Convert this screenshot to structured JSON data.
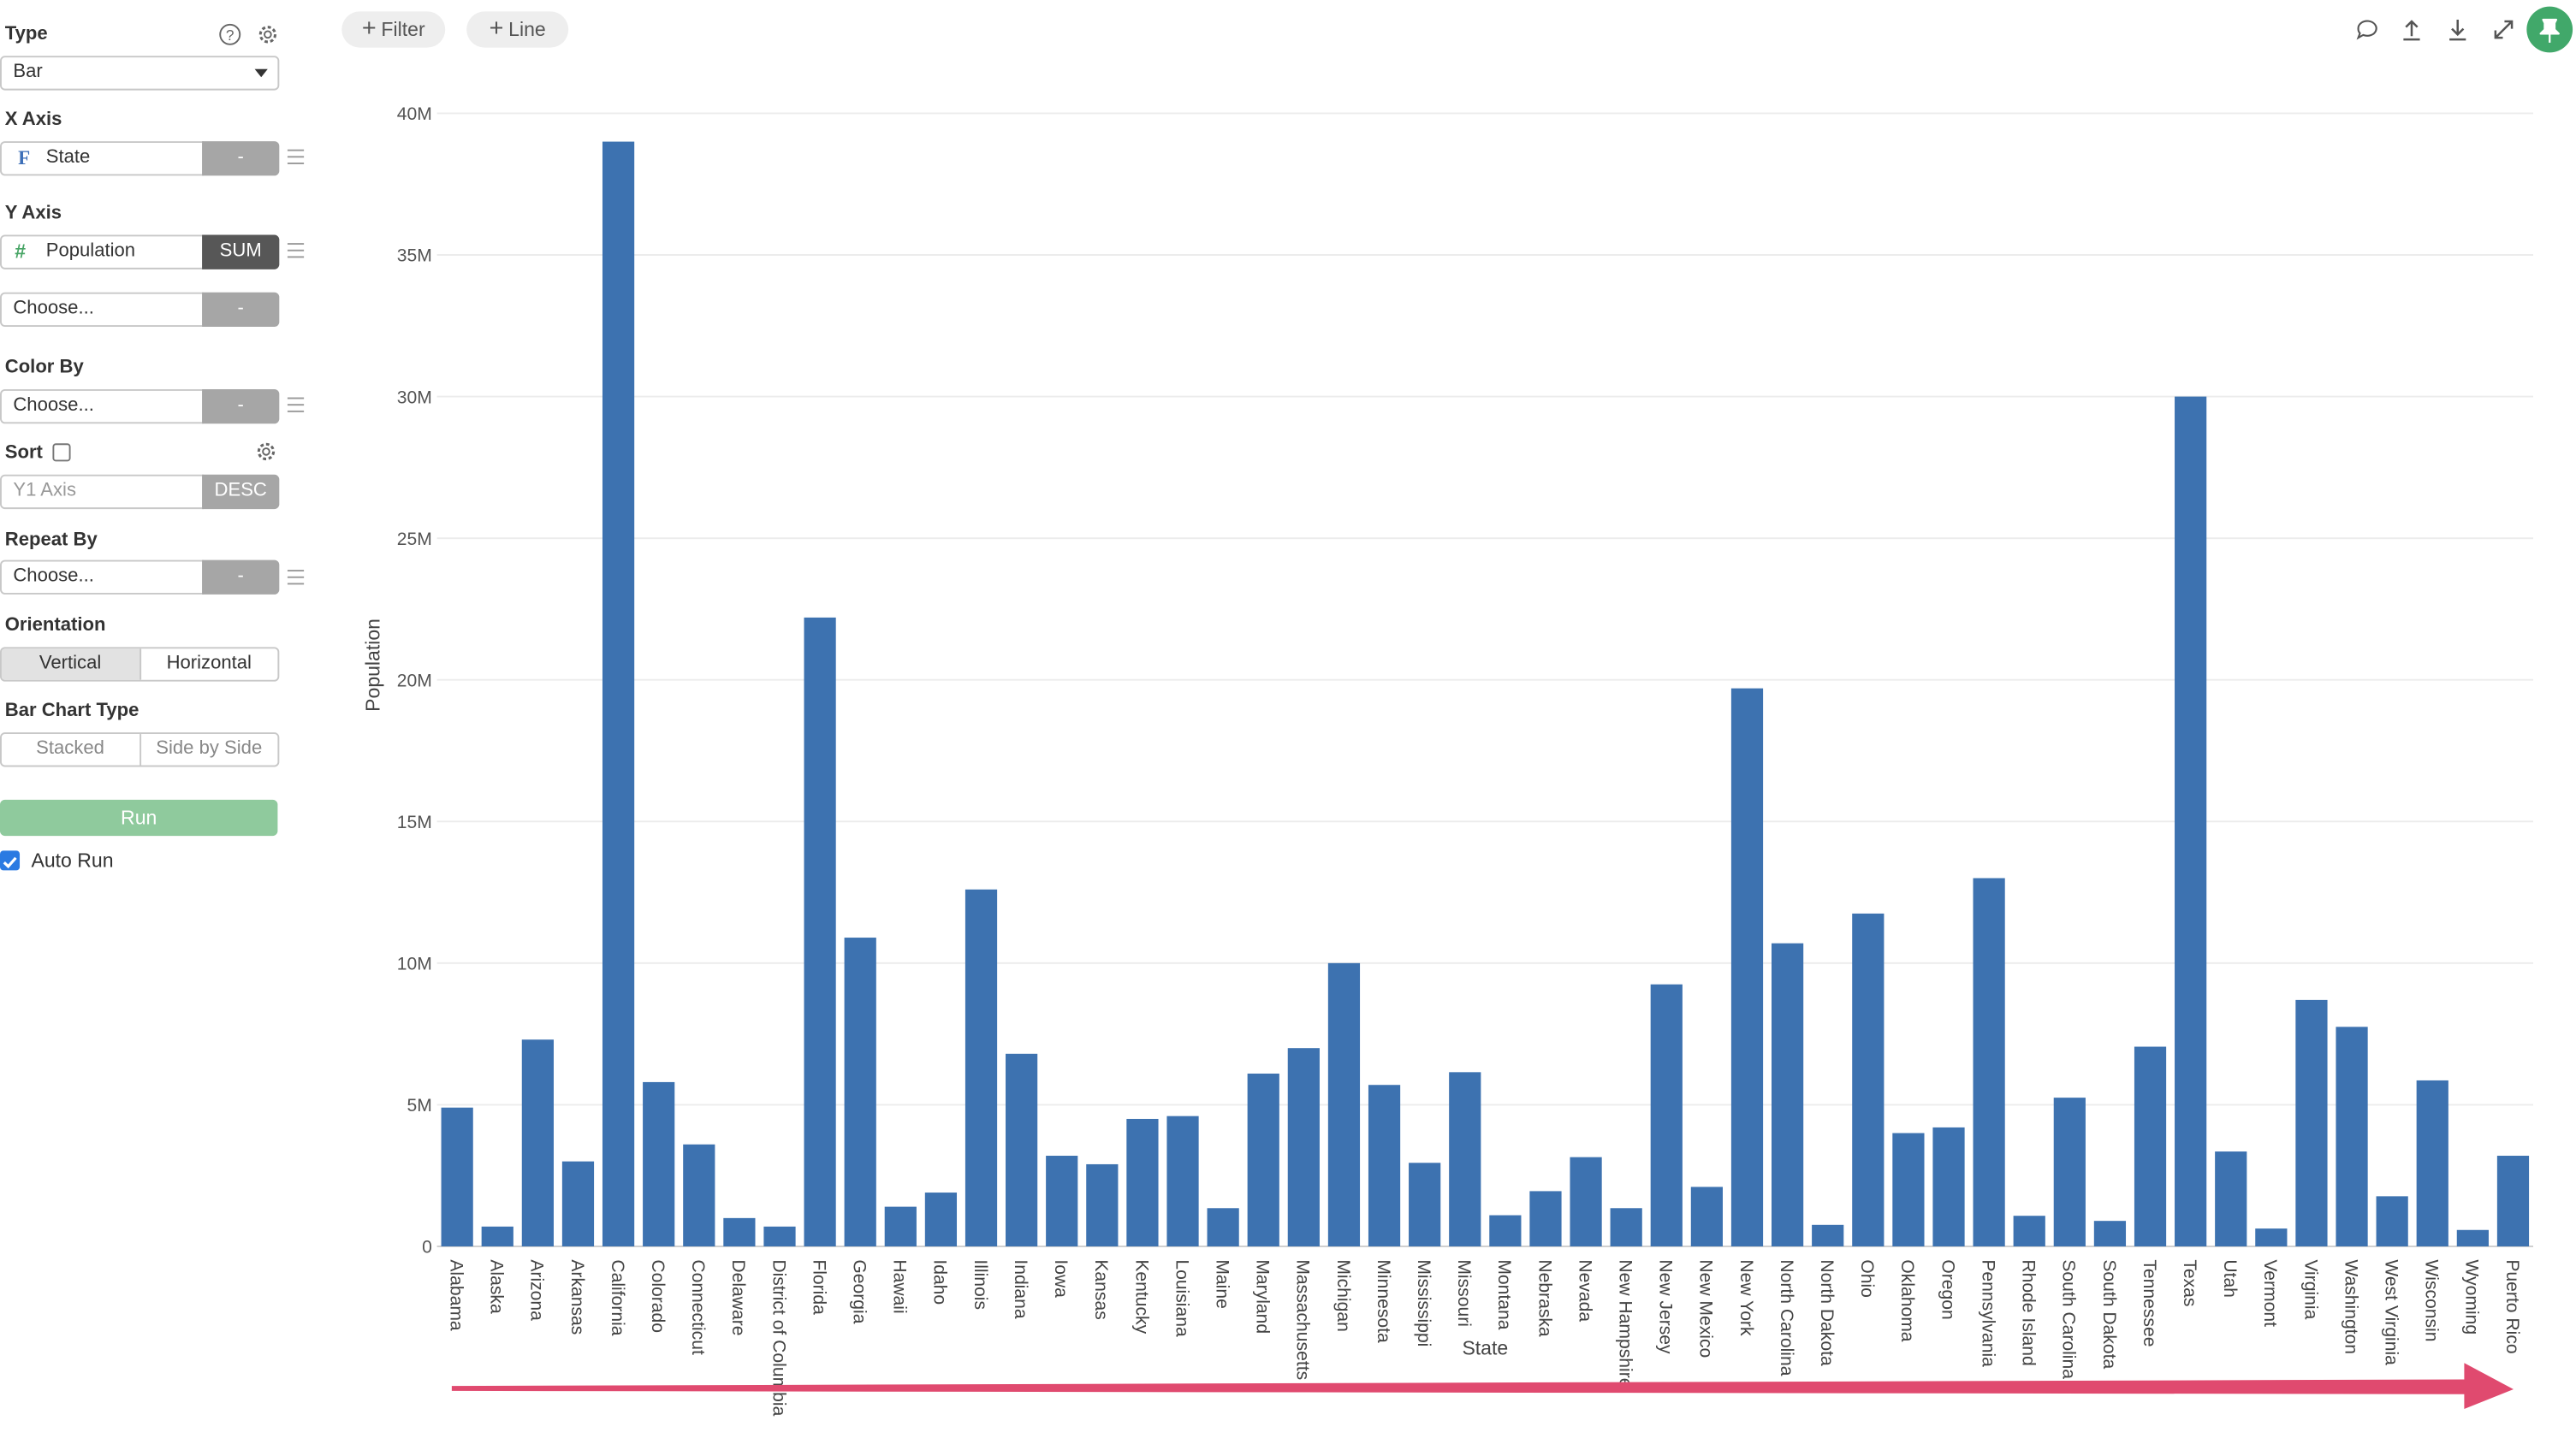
{
  "sidebar": {
    "type": {
      "title": "Type",
      "value": "Bar"
    },
    "x_axis": {
      "title": "X Axis",
      "field": "State",
      "field_type_icon": "F",
      "button": "-"
    },
    "y_axis": {
      "title": "Y Axis",
      "field": "Population",
      "field_type_icon": "#",
      "aggregate": "SUM",
      "extra_placeholder": "Choose...",
      "extra_button": "-"
    },
    "color_by": {
      "title": "Color By",
      "placeholder": "Choose...",
      "button": "-"
    },
    "sort": {
      "title": "Sort",
      "checked": false,
      "field": "Y1 Axis",
      "order": "DESC"
    },
    "repeat_by": {
      "title": "Repeat By",
      "placeholder": "Choose...",
      "button": "-"
    },
    "orientation": {
      "title": "Orientation",
      "options": [
        "Vertical",
        "Horizontal"
      ],
      "selected": "Vertical"
    },
    "bar_chart_type": {
      "title": "Bar Chart Type",
      "options": [
        "Stacked",
        "Side by Side"
      ]
    },
    "run_label": "Run",
    "auto_run": {
      "label": "Auto Run",
      "checked": true
    }
  },
  "toolbar": {
    "filter_label": "Filter",
    "line_label": "Line"
  },
  "colors": {
    "bar": "#3d72b0",
    "run_button": "#8fca9d",
    "pin_button": "#41a86a",
    "arrow": "#e04a6f"
  },
  "chart_data": {
    "type": "bar",
    "xlabel": "State",
    "ylabel": "Population",
    "ylim": [
      0,
      40000000
    ],
    "yticks": [
      0,
      5000000,
      10000000,
      15000000,
      20000000,
      25000000,
      30000000,
      35000000,
      40000000
    ],
    "ytick_labels": [
      "0",
      "5M",
      "10M",
      "15M",
      "20M",
      "25M",
      "30M",
      "35M",
      "40M"
    ],
    "grid": true,
    "categories": [
      "Alabama",
      "Alaska",
      "Arizona",
      "Arkansas",
      "California",
      "Colorado",
      "Connecticut",
      "Delaware",
      "District of Columbia",
      "Florida",
      "Georgia",
      "Hawaii",
      "Idaho",
      "Illinois",
      "Indiana",
      "Iowa",
      "Kansas",
      "Kentucky",
      "Louisiana",
      "Maine",
      "Maryland",
      "Massachusetts",
      "Michigan",
      "Minnesota",
      "Mississippi",
      "Missouri",
      "Montana",
      "Nebraska",
      "Nevada",
      "New Hampshire",
      "New Jersey",
      "New Mexico",
      "New York",
      "North Carolina",
      "North Dakota",
      "Ohio",
      "Oklahoma",
      "Oregon",
      "Pennsylvania",
      "Rhode Island",
      "South Carolina",
      "South Dakota",
      "Tennessee",
      "Texas",
      "Utah",
      "Vermont",
      "Virginia",
      "Washington",
      "West Virginia",
      "Wisconsin",
      "Wyoming",
      "Puerto Rico"
    ],
    "values": [
      4900000,
      700000,
      7300000,
      3000000,
      39000000,
      5800000,
      3600000,
      1000000,
      700000,
      22200000,
      10900000,
      1400000,
      1900000,
      12600000,
      6800000,
      3200000,
      2900000,
      4500000,
      4600000,
      1350000,
      6100000,
      7000000,
      10000000,
      5700000,
      2950000,
      6150000,
      1100000,
      1950000,
      3150000,
      1350000,
      9250000,
      2100000,
      19700000,
      10700000,
      760000,
      11750000,
      4000000,
      4200000,
      13000000,
      1080000,
      5250000,
      900000,
      7050000,
      30000000,
      3350000,
      630000,
      8700000,
      7750000,
      1770000,
      5860000,
      580000,
      3200000
    ]
  }
}
